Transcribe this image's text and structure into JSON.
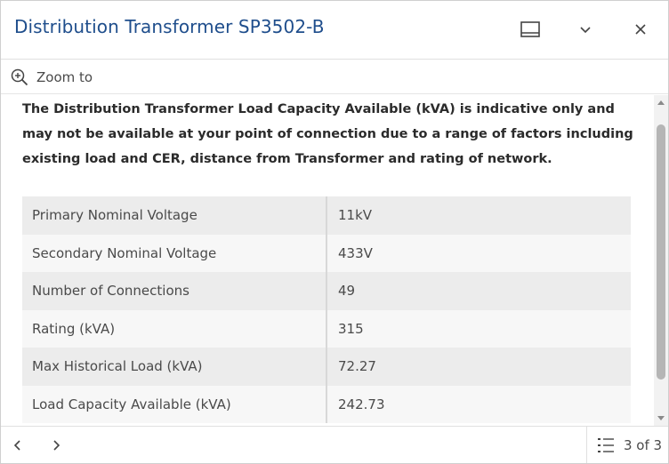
{
  "header": {
    "title": "Distribution Transformer SP3502-B",
    "icons": {
      "dock": "dock-icon",
      "collapse": "chevron-down-icon",
      "close": "close-icon"
    }
  },
  "actions": {
    "zoom_to_label": "Zoom to",
    "zoom_icon": "zoom-in-icon"
  },
  "content": {
    "notice": "The Distribution Transformer Load Capacity Available (kVA) is indicative only and may not be available at your point of connection due to a range of factors including existing load and CER, distance from Transformer and rating of network.",
    "attributes": [
      {
        "label": "Primary Nominal Voltage",
        "value": "11kV"
      },
      {
        "label": "Secondary Nominal Voltage",
        "value": "433V"
      },
      {
        "label": "Number of Connections",
        "value": "49"
      },
      {
        "label": "Rating (kVA)",
        "value": "315"
      },
      {
        "label": "Max Historical Load (kVA)",
        "value": "72.27"
      },
      {
        "label": "Load Capacity Available (kVA)",
        "value": "242.73"
      }
    ]
  },
  "footer": {
    "pager_text": "3 of 3",
    "icons": {
      "previous": "chevron-left-icon",
      "next": "chevron-right-icon",
      "list": "feature-list-icon"
    }
  },
  "colors": {
    "title": "#1f4e8c",
    "row_dark": "#ececec",
    "row_light": "#f7f7f7"
  }
}
